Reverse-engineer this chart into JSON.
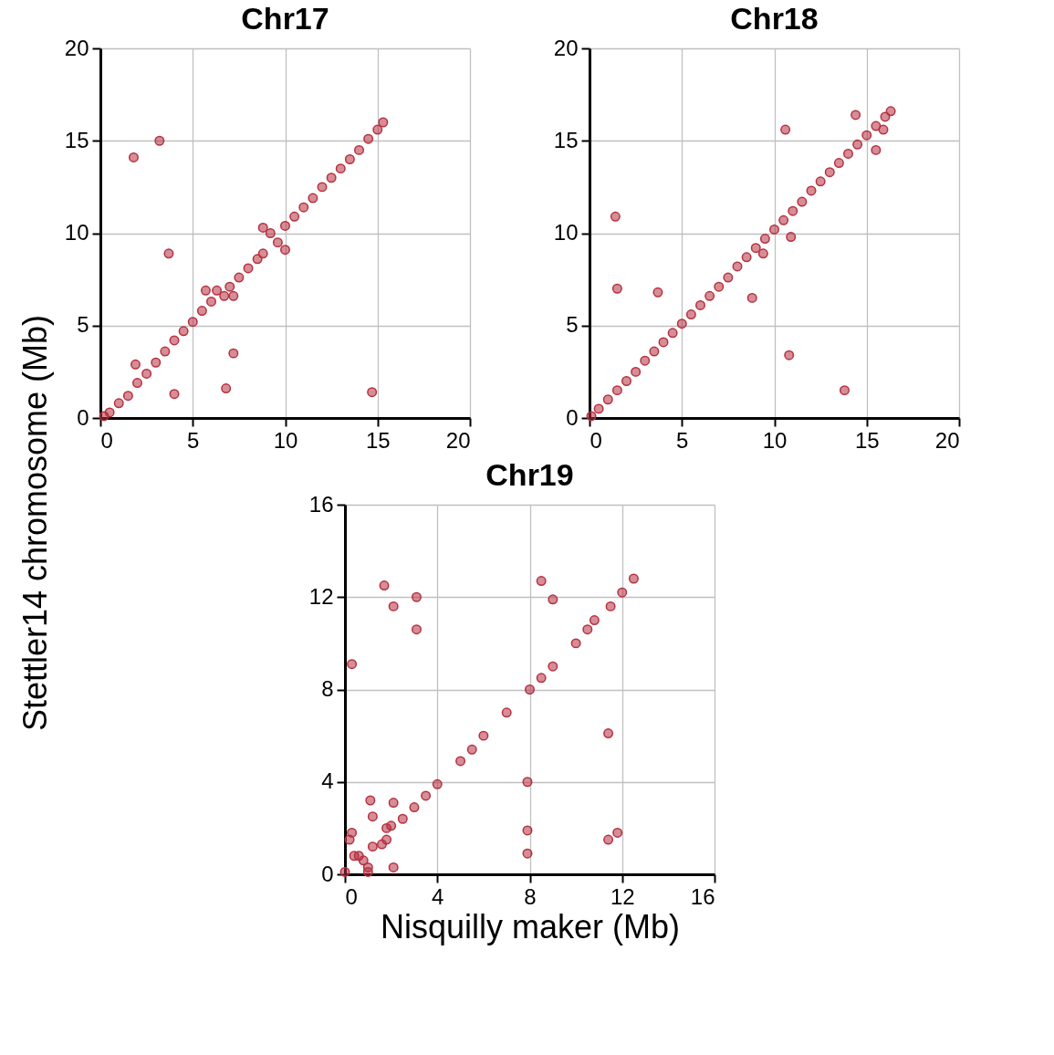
{
  "chart_data": [
    {
      "type": "scatter",
      "title": "Chr17",
      "ylabel": "Stettler14 chromosome (Mb)",
      "color": "#b5303f",
      "marker": "circle",
      "grid": true,
      "xlim": [
        0,
        20
      ],
      "ylim": [
        0,
        20
      ],
      "xticks": [
        0,
        5,
        10,
        15,
        20
      ],
      "yticks": [
        0,
        5,
        10,
        15,
        20
      ],
      "x": [
        0.2,
        0.5,
        1,
        1.5,
        2,
        2.5,
        3,
        3.5,
        4,
        4.5,
        5,
        5.5,
        6,
        7,
        7.5,
        8,
        8.5,
        8.8,
        8.8,
        9.2,
        9.6,
        10,
        10,
        10.5,
        11,
        11.5,
        12,
        12.5,
        13,
        13.5,
        14,
        14.5,
        15,
        15.3,
        1.8,
        3.2,
        3.7,
        5.7,
        6.3,
        6.7,
        7.2,
        7.2,
        1.9,
        4,
        6.8,
        14.7
      ],
      "values": [
        0.1,
        0.3,
        0.8,
        1.2,
        1.9,
        2.4,
        3.0,
        3.6,
        4.2,
        4.7,
        5.2,
        5.8,
        6.3,
        7.1,
        7.6,
        8.1,
        8.6,
        8.9,
        10.3,
        10.0,
        9.5,
        9.1,
        10.4,
        10.9,
        11.4,
        11.9,
        12.5,
        13.0,
        13.5,
        14.0,
        14.5,
        15.1,
        15.6,
        16,
        14.1,
        15.0,
        8.9,
        6.9,
        6.9,
        6.6,
        6.6,
        3.5,
        2.9,
        1.3,
        1.6,
        1.4
      ]
    },
    {
      "type": "scatter",
      "title": "Chr18",
      "color": "#b5303f",
      "marker": "circle",
      "grid": true,
      "xlim": [
        0,
        20
      ],
      "ylim": [
        0,
        20
      ],
      "xticks": [
        0,
        5,
        10,
        15,
        20
      ],
      "yticks": [
        0,
        5,
        10,
        15,
        20
      ],
      "x": [
        0.1,
        0.5,
        1,
        1.5,
        2,
        2.5,
        3,
        3.5,
        4,
        4.5,
        5,
        5.5,
        6,
        6.5,
        7,
        7.5,
        8,
        8.5,
        9,
        9.5,
        10,
        10.5,
        11,
        11.5,
        12,
        12.5,
        13,
        13.5,
        14,
        14.5,
        15,
        15.5,
        16,
        16.3,
        1.4,
        1.5,
        3.7,
        8.8,
        9.4,
        10.6,
        10.9,
        10.8,
        13.8,
        14.4,
        15.5,
        15.9
      ],
      "values": [
        0.1,
        0.5,
        1.0,
        1.5,
        2.0,
        2.5,
        3.1,
        3.6,
        4.1,
        4.6,
        5.1,
        5.6,
        6.1,
        6.6,
        7.1,
        7.6,
        8.2,
        8.7,
        9.2,
        9.7,
        10.2,
        10.7,
        11.2,
        11.7,
        12.3,
        12.8,
        13.3,
        13.8,
        14.3,
        14.8,
        15.3,
        15.8,
        16.3,
        16.6,
        10.9,
        7.0,
        6.8,
        6.5,
        8.9,
        15.6,
        9.8,
        3.4,
        1.5,
        16.4,
        14.5,
        15.6
      ]
    },
    {
      "type": "scatter",
      "title": "Chr19",
      "xlabel": "Nisquilly maker (Mb)",
      "color": "#b5303f",
      "marker": "circle",
      "grid": true,
      "xlim": [
        0,
        16
      ],
      "ylim": [
        0,
        16
      ],
      "xticks": [
        0,
        4,
        8,
        12,
        16
      ],
      "yticks": [
        0,
        4,
        8,
        12,
        16
      ],
      "x": [
        0,
        0.2,
        0.3,
        0.4,
        0.6,
        0.8,
        1.0,
        1.2,
        1.6,
        1.8,
        2,
        2.5,
        3,
        3.5,
        4,
        5,
        5.5,
        6,
        7,
        8,
        8.5,
        9,
        10,
        10.5,
        10.8,
        11.5,
        12,
        12.5,
        0.3,
        1.7,
        2.1,
        3.1,
        3.1,
        8.5,
        9.0,
        11.4,
        7.9,
        7.9,
        7.9,
        11.4,
        11.8,
        1.1,
        2.1,
        1.2,
        2.1,
        1.8,
        1.0
      ],
      "values": [
        0.1,
        1.5,
        1.8,
        0.8,
        0.8,
        0.6,
        0.3,
        1.2,
        1.3,
        2.0,
        2.1,
        2.4,
        2.9,
        3.4,
        3.9,
        4.9,
        5.4,
        6.0,
        7.0,
        8.0,
        8.5,
        9.0,
        10.0,
        10.6,
        11.0,
        11.6,
        12.2,
        12.8,
        9.1,
        12.5,
        11.6,
        12.0,
        10.6,
        12.7,
        11.9,
        6.1,
        4.0,
        1.9,
        0.9,
        1.5,
        1.8,
        3.2,
        3.1,
        2.5,
        0.3,
        1.5,
        0.1
      ]
    }
  ]
}
